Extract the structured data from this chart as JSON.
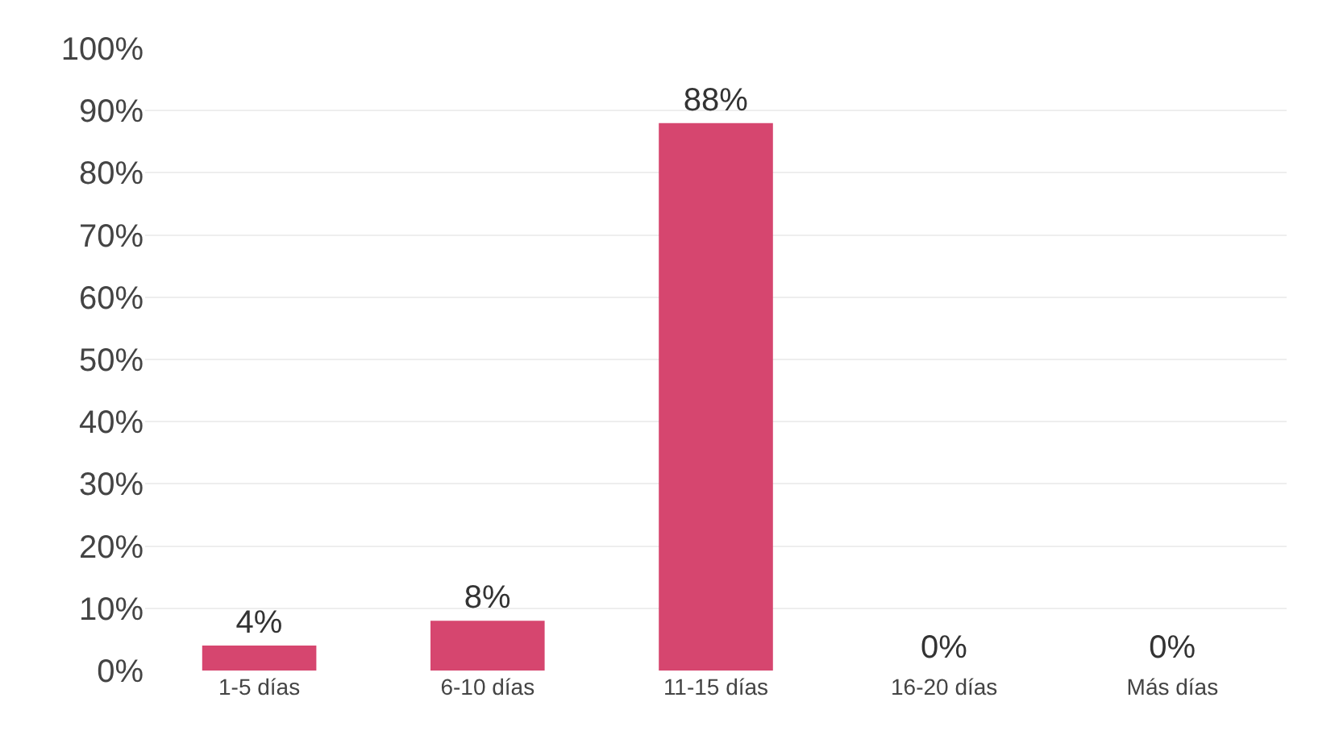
{
  "chart_data": {
    "type": "bar",
    "categories": [
      "1-5 días",
      "6-10 días",
      "11-15 días",
      "16-20 días",
      "Más días"
    ],
    "values": [
      4,
      8,
      88,
      0,
      0
    ],
    "value_labels": [
      "4%",
      "8%",
      "88%",
      "0%",
      "0%"
    ],
    "color": "#d6466f",
    "ylim": [
      0,
      100
    ],
    "yticks": [
      {
        "value": 0,
        "label": "0%"
      },
      {
        "value": 10,
        "label": "10%"
      },
      {
        "value": 20,
        "label": "20%"
      },
      {
        "value": 30,
        "label": "30%"
      },
      {
        "value": 40,
        "label": "40%"
      },
      {
        "value": 50,
        "label": "50%"
      },
      {
        "value": 60,
        "label": "60%"
      },
      {
        "value": 70,
        "label": "70%"
      },
      {
        "value": 80,
        "label": "80%"
      },
      {
        "value": 90,
        "label": "90%"
      },
      {
        "value": 100,
        "label": "100%"
      }
    ],
    "grid": "y"
  }
}
